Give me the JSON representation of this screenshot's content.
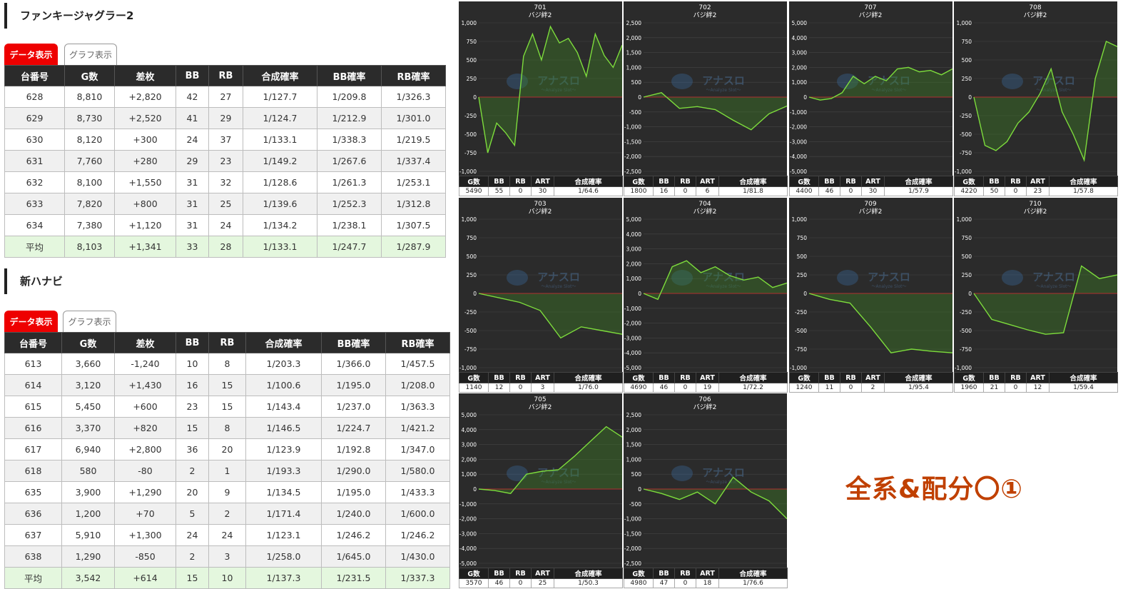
{
  "tab_labels": {
    "data": "データ表示",
    "graph": "グラフ表示"
  },
  "table_headers": [
    "台番号",
    "G数",
    "差枚",
    "BB",
    "RB",
    "合成確率",
    "BB確率",
    "RB確率"
  ],
  "sections": [
    {
      "title": "ファンキージャグラー2",
      "rows": [
        [
          "628",
          "8,810",
          "+2,820",
          "42",
          "27",
          "1/127.7",
          "1/209.8",
          "1/326.3"
        ],
        [
          "629",
          "8,730",
          "+2,520",
          "41",
          "29",
          "1/124.7",
          "1/212.9",
          "1/301.0"
        ],
        [
          "630",
          "8,120",
          "+300",
          "24",
          "37",
          "1/133.1",
          "1/338.3",
          "1/219.5"
        ],
        [
          "631",
          "7,760",
          "+280",
          "29",
          "23",
          "1/149.2",
          "1/267.6",
          "1/337.4"
        ],
        [
          "632",
          "8,100",
          "+1,550",
          "31",
          "32",
          "1/128.6",
          "1/261.3",
          "1/253.1"
        ],
        [
          "633",
          "7,820",
          "+800",
          "31",
          "25",
          "1/139.6",
          "1/252.3",
          "1/312.8"
        ],
        [
          "634",
          "7,380",
          "+1,120",
          "31",
          "24",
          "1/134.2",
          "1/238.1",
          "1/307.5"
        ]
      ],
      "average": [
        "平均",
        "8,103",
        "+1,341",
        "33",
        "28",
        "1/133.1",
        "1/247.7",
        "1/287.9"
      ]
    },
    {
      "title": "新ハナビ",
      "rows": [
        [
          "613",
          "3,660",
          "-1,240",
          "10",
          "8",
          "1/203.3",
          "1/366.0",
          "1/457.5"
        ],
        [
          "614",
          "3,120",
          "+1,430",
          "16",
          "15",
          "1/100.6",
          "1/195.0",
          "1/208.0"
        ],
        [
          "615",
          "5,450",
          "+600",
          "23",
          "15",
          "1/143.4",
          "1/237.0",
          "1/363.3"
        ],
        [
          "616",
          "3,370",
          "+820",
          "15",
          "8",
          "1/146.5",
          "1/224.7",
          "1/421.2"
        ],
        [
          "617",
          "6,940",
          "+2,800",
          "36",
          "20",
          "1/123.9",
          "1/192.8",
          "1/347.0"
        ],
        [
          "618",
          "580",
          "-80",
          "2",
          "1",
          "1/193.3",
          "1/290.0",
          "1/580.0"
        ],
        [
          "635",
          "3,900",
          "+1,290",
          "20",
          "9",
          "1/134.5",
          "1/195.0",
          "1/433.3"
        ],
        [
          "636",
          "1,200",
          "+70",
          "5",
          "2",
          "1/171.4",
          "1/240.0",
          "1/600.0"
        ],
        [
          "637",
          "5,910",
          "+1,300",
          "24",
          "24",
          "1/123.1",
          "1/246.2",
          "1/246.2"
        ],
        [
          "638",
          "1,290",
          "-850",
          "2",
          "3",
          "1/258.0",
          "1/645.0",
          "1/430.0"
        ]
      ],
      "average": [
        "平均",
        "3,542",
        "+614",
        "15",
        "10",
        "1/137.3",
        "1/231.5",
        "1/337.3"
      ]
    }
  ],
  "stats_headers": [
    "G数",
    "BB",
    "RB",
    "ART",
    "合成確率"
  ],
  "watermark": {
    "main": "アナスロ",
    "sub": "～Analyze Slot～"
  },
  "annotation": "全系&配分〇①",
  "colors": {
    "accent_red": "#ee0000",
    "line_green": "#7ddc3c",
    "zero_line": "#b03030",
    "annotation": "#c04000"
  },
  "chart_data": [
    {
      "type": "area",
      "title": "701",
      "subtitle": "バジ絆2",
      "ylim": [
        -1000,
        1000
      ],
      "yticks": [
        1000,
        750,
        500,
        250,
        0,
        -250,
        -500,
        -750,
        -1000
      ],
      "series": [
        {
          "values": [
            0,
            -750,
            -350,
            -480,
            -650,
            550,
            850,
            500,
            950,
            730,
            790,
            600,
            280,
            850,
            560,
            400,
            700
          ]
        }
      ],
      "stats": [
        "5490",
        "55",
        "0",
        "30",
        "1/64.6"
      ]
    },
    {
      "type": "area",
      "title": "702",
      "subtitle": "バジ絆2",
      "ylim": [
        -2500,
        2500
      ],
      "yticks": [
        2500,
        2000,
        1500,
        1000,
        500,
        0,
        -500,
        -1000,
        -1500,
        -2000,
        -2500
      ],
      "series": [
        {
          "values": [
            0,
            150,
            -380,
            -320,
            -420,
            -780,
            -1100,
            -560,
            -300
          ]
        }
      ],
      "stats": [
        "1800",
        "16",
        "0",
        "6",
        "1/81.8"
      ]
    },
    {
      "type": "area",
      "title": "707",
      "subtitle": "バジ絆2",
      "ylim": [
        -5000,
        5000
      ],
      "yticks": [
        5000,
        4000,
        3000,
        2000,
        1000,
        0,
        -1000,
        -2000,
        -3000,
        -4000,
        -5000
      ],
      "series": [
        {
          "values": [
            0,
            -200,
            -100,
            300,
            1400,
            900,
            1400,
            1100,
            1900,
            2000,
            1700,
            1800,
            1500,
            1900
          ]
        }
      ],
      "stats": [
        "4400",
        "46",
        "0",
        "30",
        "1/57.9"
      ]
    },
    {
      "type": "area",
      "title": "708",
      "subtitle": "バジ絆2",
      "ylim": [
        -1000,
        1000
      ],
      "yticks": [
        1000,
        750,
        500,
        250,
        0,
        -250,
        -500,
        -750,
        -1000
      ],
      "series": [
        {
          "values": [
            0,
            -650,
            -720,
            -600,
            -350,
            -200,
            50,
            380,
            -200,
            -500,
            -850,
            250,
            750,
            680
          ]
        }
      ],
      "stats": [
        "4220",
        "50",
        "0",
        "23",
        "1/57.8"
      ]
    },
    {
      "type": "area",
      "title": "703",
      "subtitle": "バジ絆2",
      "ylim": [
        -1000,
        1000
      ],
      "yticks": [
        1000,
        750,
        500,
        250,
        0,
        -250,
        -500,
        -750,
        -1000
      ],
      "series": [
        {
          "values": [
            0,
            -60,
            -120,
            -230,
            -600,
            -450,
            -500,
            -550
          ]
        }
      ],
      "stats": [
        "1140",
        "12",
        "0",
        "3",
        "1/76.0"
      ]
    },
    {
      "type": "area",
      "title": "704",
      "subtitle": "バジ絆2",
      "ylim": [
        -5000,
        5000
      ],
      "yticks": [
        5000,
        4000,
        3000,
        2000,
        1000,
        0,
        -1000,
        -2000,
        -3000,
        -4000,
        -5000
      ],
      "series": [
        {
          "values": [
            0,
            -400,
            1800,
            2200,
            1400,
            1800,
            1200,
            900,
            1100,
            400,
            700
          ]
        }
      ],
      "stats": [
        "4690",
        "46",
        "0",
        "19",
        "1/72.2"
      ]
    },
    {
      "type": "area",
      "title": "709",
      "subtitle": "バジ絆2",
      "ylim": [
        -1000,
        1000
      ],
      "yticks": [
        1000,
        750,
        500,
        250,
        0,
        -250,
        -500,
        -750,
        -1000
      ],
      "series": [
        {
          "values": [
            0,
            -80,
            -130,
            -450,
            -800,
            -750,
            -780,
            -800
          ]
        }
      ],
      "stats": [
        "1240",
        "11",
        "0",
        "2",
        "1/95.4"
      ]
    },
    {
      "type": "area",
      "title": "710",
      "subtitle": "バジ絆2",
      "ylim": [
        -1000,
        1000
      ],
      "yticks": [
        1000,
        750,
        500,
        250,
        0,
        -250,
        -500,
        -750,
        -1000
      ],
      "series": [
        {
          "values": [
            0,
            -350,
            -420,
            -490,
            -550,
            -530,
            370,
            200,
            250
          ]
        }
      ],
      "stats": [
        "1960",
        "21",
        "0",
        "12",
        "1/59.4"
      ]
    },
    {
      "type": "area",
      "title": "705",
      "subtitle": "バジ絆2",
      "ylim": [
        -5000,
        5000
      ],
      "yticks": [
        5000,
        4000,
        3000,
        2000,
        1000,
        0,
        -1000,
        -2000,
        -3000,
        -4000,
        -5000
      ],
      "series": [
        {
          "values": [
            0,
            -100,
            -300,
            1000,
            1200,
            1300,
            2200,
            3200,
            4200,
            3500
          ]
        }
      ],
      "stats": [
        "3570",
        "46",
        "0",
        "25",
        "1/50.3"
      ]
    },
    {
      "type": "area",
      "title": "706",
      "subtitle": "バジ絆2",
      "ylim": [
        -2500,
        2500
      ],
      "yticks": [
        2500,
        2000,
        1500,
        1000,
        500,
        0,
        -500,
        -1000,
        -1500,
        -2000,
        -2500
      ],
      "series": [
        {
          "values": [
            0,
            -150,
            -350,
            -100,
            -500,
            400,
            -100,
            -400,
            -1000
          ]
        }
      ],
      "stats": [
        "4980",
        "47",
        "0",
        "18",
        "1/76.6"
      ]
    }
  ]
}
